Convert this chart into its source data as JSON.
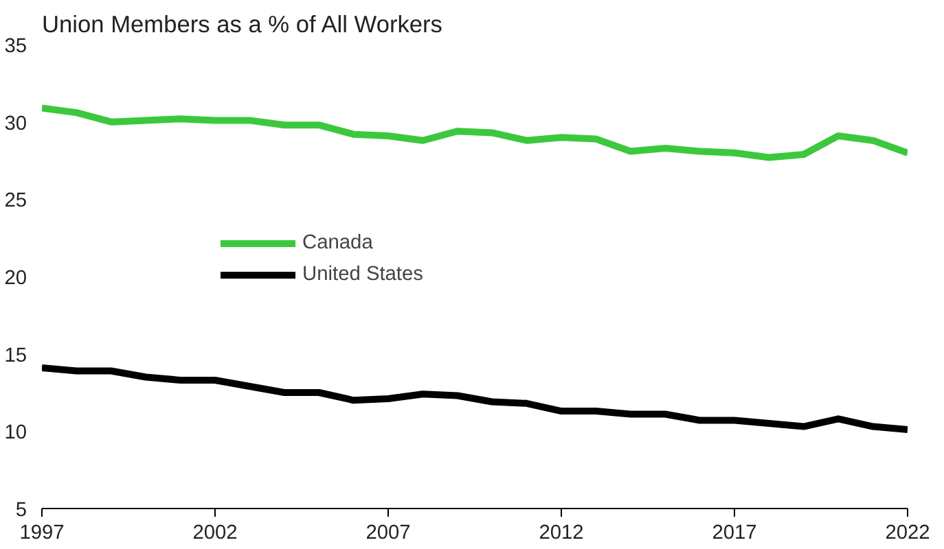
{
  "chart_data": {
    "type": "line",
    "title": "Union Members as a % of All Workers",
    "x": [
      1997,
      1998,
      1999,
      2000,
      2001,
      2002,
      2003,
      2004,
      2005,
      2006,
      2007,
      2008,
      2009,
      2010,
      2011,
      2012,
      2013,
      2014,
      2015,
      2016,
      2017,
      2018,
      2019,
      2020,
      2021,
      2022
    ],
    "series": [
      {
        "name": "Canada",
        "color": "#3cc83c",
        "values": [
          30.9,
          30.6,
          30.0,
          30.1,
          30.2,
          30.1,
          30.1,
          29.8,
          29.8,
          29.2,
          29.1,
          28.8,
          29.4,
          29.3,
          28.8,
          29.0,
          28.9,
          28.1,
          28.3,
          28.1,
          28.0,
          27.7,
          27.9,
          29.1,
          28.8,
          28.0
        ]
      },
      {
        "name": "United States",
        "color": "#000000",
        "values": [
          14.1,
          13.9,
          13.9,
          13.5,
          13.3,
          13.3,
          12.9,
          12.5,
          12.5,
          12.0,
          12.1,
          12.4,
          12.3,
          11.9,
          11.8,
          11.3,
          11.3,
          11.1,
          11.1,
          10.7,
          10.7,
          10.5,
          10.3,
          10.8,
          10.3,
          10.1
        ]
      }
    ],
    "xlim": [
      1997,
      2022
    ],
    "xticks": [
      1997,
      2002,
      2007,
      2012,
      2017,
      2022
    ],
    "ylim": [
      5,
      35
    ],
    "yticks": [
      5,
      10,
      15,
      20,
      25,
      30,
      35
    ],
    "grid": false,
    "legend": "left",
    "marker": "none",
    "line_style": "solid"
  }
}
